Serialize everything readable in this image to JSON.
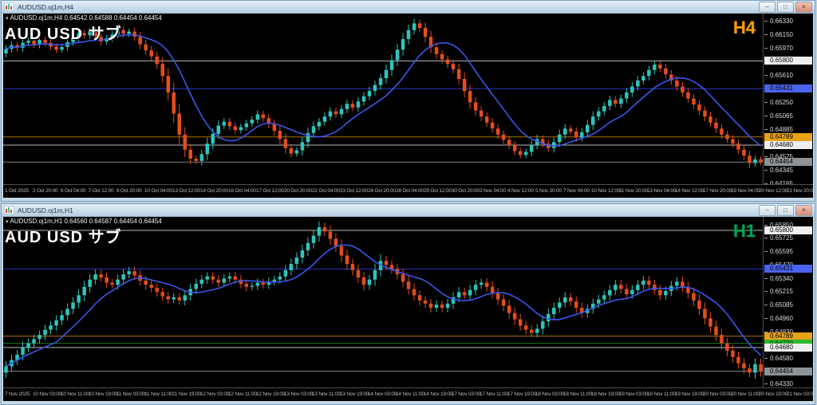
{
  "app": {
    "mdi_background": "#b9cede"
  },
  "windows": [
    {
      "title": "AUDUSD.oj1m,H4",
      "buttons": {
        "minimize": "–",
        "restore": "□",
        "close": "×"
      },
      "info_line": "AUDUSD.oj1m,H4  0.64542 0.64588 0.64454 0.64454",
      "watermark": "AUD USD  サブ",
      "timeframe_label": "H4",
      "timeframe_color": "#ff9c00"
    },
    {
      "title": "AUDUSD.oj1m,H1",
      "buttons": {
        "minimize": "–",
        "restore": "□",
        "close": "×"
      },
      "info_line": "AUDUSD.oj1m,H1  0.64560 0.64587 0.64454 0.64454",
      "watermark": "AUD USD  サブ",
      "timeframe_label": "H1",
      "timeframe_color": "#00a550"
    }
  ],
  "chart_data": [
    {
      "type": "candlestick",
      "symbol": "AUDUSD.oj1m",
      "timeframe": "H4",
      "title": "AUD USD サブ",
      "ohlc_info": {
        "open": "0.64542",
        "high": "0.64588",
        "low": "0.64454",
        "close": "0.64454"
      },
      "y_range": [
        0.6415,
        0.6643
      ],
      "y_ticks": [
        "0.66330",
        "0.66150",
        "0.65970",
        "0.65610",
        "0.65250",
        "0.65065",
        "0.64885",
        "0.64525",
        "0.64345",
        "0.64165"
      ],
      "levels": [
        {
          "value": 0.658,
          "label": "0.65800",
          "line_color": "#b8b8b8",
          "box_bg": "#efefef",
          "box_fg": "#000000"
        },
        {
          "value": 0.65431,
          "label": "0.65431",
          "line_color": "#2936c0",
          "box_bg": "#4a64f0",
          "box_fg": "#000000"
        },
        {
          "value": 0.64789,
          "label": "0.64789",
          "line_color": "#a87408",
          "box_bg": "#e8a318",
          "box_fg": "#000000"
        },
        {
          "value": 0.6468,
          "label": "0.64680",
          "line_color": "#b8b8b8",
          "box_bg": "#efefef",
          "box_fg": "#000000"
        }
      ],
      "current_price": {
        "value": 0.64454,
        "label": "0.64454",
        "line_color": "#787d80",
        "box_bg": "#8d9499",
        "box_fg": "#000000"
      },
      "time_labels": [
        "1 Oct 2025",
        "2 Oct 20:00",
        "6 Oct 04:00",
        "7 Oct 12:00",
        "8 Oct 20:00",
        "10 Oct 04:00",
        "13 Oct 12:00",
        "14 Oct 20:00",
        "16 Oct 04:00",
        "17 Oct 12:00",
        "20 Oct 20:00",
        "22 Oct 04:00",
        "23 Oct 12:00",
        "24 Oct 20:00",
        "28 Oct 04:00",
        "29 Oct 12:00",
        "30 Oct 20:00",
        "3 Nov 04:00",
        "4 Nov 12:00",
        "5 Nov 20:00",
        "7 Nov 04:00",
        "10 Nov 12:00",
        "11 Nov 20:00",
        "13 Nov 04:00",
        "14 Nov 12:00",
        "17 Nov 20:00",
        "19 Nov 04:00",
        "20 Nov 12:00",
        "21 Nov 20:00"
      ],
      "closes": [
        0.6596,
        0.6601,
        0.65975,
        0.6604,
        0.6607,
        0.6602,
        0.6608,
        0.6604,
        0.6599,
        0.6595,
        0.65985,
        0.6605,
        0.6611,
        0.6617,
        0.6614,
        0.6619,
        0.6612,
        0.6606,
        0.661,
        0.6615,
        0.6621,
        0.6616,
        0.6619,
        0.6612,
        0.6602,
        0.6594,
        0.6586,
        0.6576,
        0.656,
        0.6538,
        0.651,
        0.6482,
        0.6462,
        0.645,
        0.6447,
        0.6456,
        0.647,
        0.6483,
        0.6494,
        0.6499,
        0.6493,
        0.6488,
        0.6492,
        0.6497,
        0.6502,
        0.6509,
        0.6504,
        0.6496,
        0.6487,
        0.6476,
        0.6464,
        0.6457,
        0.6461,
        0.6472,
        0.6484,
        0.6493,
        0.6499,
        0.6506,
        0.6513,
        0.6509,
        0.6516,
        0.6523,
        0.6518,
        0.6526,
        0.6533,
        0.654,
        0.6548,
        0.6557,
        0.6568,
        0.6581,
        0.6595,
        0.6609,
        0.6621,
        0.663,
        0.6624,
        0.6612,
        0.6598,
        0.6589,
        0.6582,
        0.6576,
        0.6569,
        0.6556,
        0.654,
        0.6525,
        0.6514,
        0.6506,
        0.6498,
        0.649,
        0.6482,
        0.6475,
        0.6468,
        0.646,
        0.6455,
        0.6459,
        0.6468,
        0.6476,
        0.647,
        0.6464,
        0.6472,
        0.6482,
        0.649,
        0.6486,
        0.6478,
        0.6485,
        0.6495,
        0.6506,
        0.6513,
        0.652,
        0.6528,
        0.6523,
        0.653,
        0.6538,
        0.6546,
        0.6554,
        0.656,
        0.6568,
        0.6575,
        0.657,
        0.6562,
        0.6554,
        0.6546,
        0.6538,
        0.653,
        0.6522,
        0.6514,
        0.6506,
        0.6498,
        0.649,
        0.6482,
        0.6476,
        0.647,
        0.6462,
        0.6454,
        0.6444,
        0.6449,
        0.64454
      ],
      "ma_period": 10,
      "candle_up": "#2cc6bb",
      "candle_down": "#e44d1d",
      "ma_color": "#3a57e8"
    },
    {
      "type": "candlestick",
      "symbol": "AUDUSD.oj1m",
      "timeframe": "H1",
      "title": "AUD USD サブ",
      "ohlc_info": {
        "open": "0.64560",
        "high": "0.64587",
        "low": "0.64454",
        "close": "0.64454"
      },
      "y_range": [
        0.6429,
        0.6593
      ],
      "y_ticks": [
        "0.65850",
        "0.65725",
        "0.65595",
        "0.65470",
        "0.65340",
        "0.65215",
        "0.65085",
        "0.64960",
        "0.64830",
        "0.64580",
        "0.64330"
      ],
      "levels": [
        {
          "value": 0.658,
          "label": "0.65800",
          "line_color": "#b8b8b8",
          "box_bg": "#efefef",
          "box_fg": "#000000"
        },
        {
          "value": 0.65431,
          "label": "0.65431",
          "line_color": "#2936c0",
          "box_bg": "#4a64f0",
          "box_fg": "#000000"
        },
        {
          "value": 0.64789,
          "label": "0.64789",
          "line_color": "#a87408",
          "box_bg": "#e8a318",
          "box_fg": "#000000"
        },
        {
          "value": 0.6472,
          "label": "0.64720",
          "line_color": "#1c741c",
          "box_bg": "#2eb82e",
          "box_fg": "#063806"
        },
        {
          "value": 0.6468,
          "label": "0.64680",
          "line_color": "#b8b8b8",
          "box_bg": "#efefef",
          "box_fg": "#000000"
        }
      ],
      "current_price": {
        "value": 0.64454,
        "label": "0.64454",
        "line_color": "#787d80",
        "box_bg": "#8d9499",
        "box_fg": "#000000"
      },
      "time_labels": [
        "7 Nov 2025",
        "10 Nov 03:00",
        "10 Nov 11:00",
        "10 Nov 19:00",
        "11 Nov 03:00",
        "11 Nov 11:00",
        "11 Nov 19:00",
        "12 Nov 03:00",
        "12 Nov 11:00",
        "12 Nov 19:00",
        "13 Nov 03:00",
        "13 Nov 11:00",
        "13 Nov 19:00",
        "14 Nov 03:00",
        "14 Nov 11:00",
        "14 Nov 19:00",
        "17 Nov 03:00",
        "17 Nov 11:00",
        "17 Nov 19:00",
        "18 Nov 03:00",
        "18 Nov 11:00",
        "18 Nov 19:00",
        "19 Nov 03:00",
        "19 Nov 11:00",
        "19 Nov 19:00",
        "20 Nov 03:00",
        "20 Nov 11:00",
        "20 Nov 19:00",
        "21 Nov 03:00"
      ],
      "closes": [
        0.645,
        0.6456,
        0.6461,
        0.6468,
        0.6472,
        0.6476,
        0.648,
        0.6485,
        0.6489,
        0.6494,
        0.6499,
        0.6505,
        0.6511,
        0.6518,
        0.6526,
        0.6533,
        0.6538,
        0.6535,
        0.653,
        0.6528,
        0.6533,
        0.6538,
        0.6541,
        0.6537,
        0.6532,
        0.6528,
        0.6525,
        0.6521,
        0.6517,
        0.6514,
        0.6516,
        0.6513,
        0.6518,
        0.6524,
        0.6529,
        0.6533,
        0.6536,
        0.6533,
        0.653,
        0.6534,
        0.6536,
        0.6533,
        0.6529,
        0.6526,
        0.6527,
        0.653,
        0.6528,
        0.6531,
        0.6533,
        0.6536,
        0.6542,
        0.6548,
        0.6554,
        0.6561,
        0.6568,
        0.6575,
        0.6583,
        0.6579,
        0.6572,
        0.6565,
        0.6556,
        0.6548,
        0.6542,
        0.6535,
        0.6528,
        0.6533,
        0.6542,
        0.6551,
        0.6547,
        0.6543,
        0.6538,
        0.6531,
        0.6524,
        0.6518,
        0.6513,
        0.651,
        0.6506,
        0.6509,
        0.6506,
        0.651,
        0.6516,
        0.6521,
        0.6518,
        0.6523,
        0.6528,
        0.653,
        0.6526,
        0.652,
        0.6514,
        0.6508,
        0.6501,
        0.6495,
        0.6489,
        0.6485,
        0.6482,
        0.6486,
        0.6493,
        0.65,
        0.6506,
        0.6511,
        0.6516,
        0.6512,
        0.6506,
        0.6501,
        0.6505,
        0.651,
        0.6514,
        0.6518,
        0.6523,
        0.6528,
        0.6524,
        0.6519,
        0.6523,
        0.6528,
        0.6532,
        0.6528,
        0.6523,
        0.6518,
        0.6522,
        0.6527,
        0.6531,
        0.6526,
        0.652,
        0.6513,
        0.6505,
        0.6496,
        0.6488,
        0.648,
        0.6472,
        0.6465,
        0.6459,
        0.6453,
        0.6448,
        0.6444,
        0.6452,
        0.64454
      ],
      "ma_period": 10,
      "candle_up": "#2cc6bb",
      "candle_down": "#e44d1d",
      "ma_color": "#3a57e8"
    }
  ]
}
